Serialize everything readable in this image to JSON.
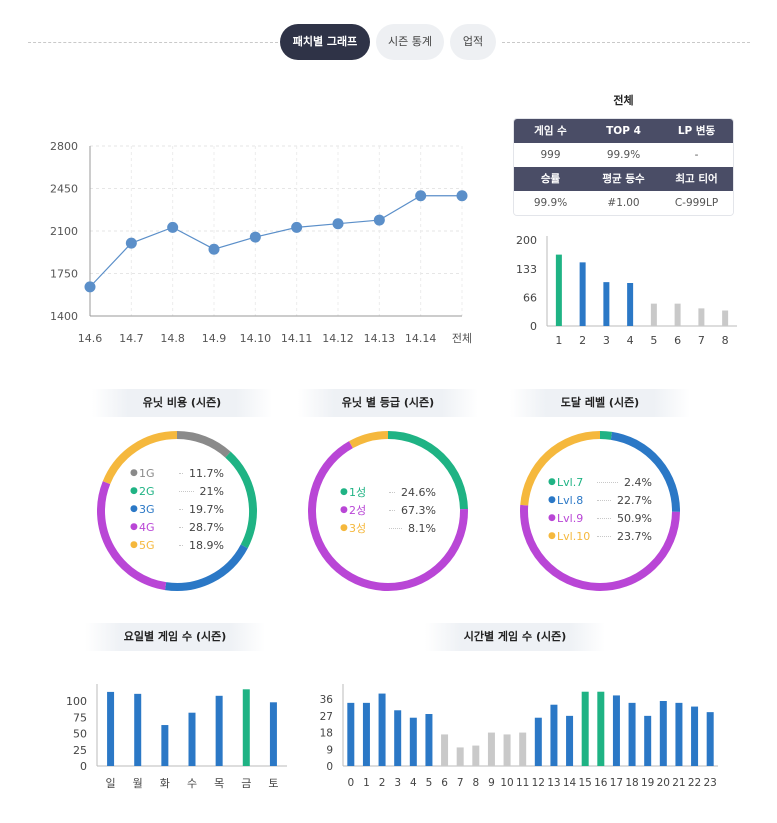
{
  "tabs": [
    {
      "label": "패치별 그래프",
      "active": true
    },
    {
      "label": "시즌 통계",
      "active": false
    },
    {
      "label": "업적",
      "active": false
    }
  ],
  "summary": {
    "title": "전체",
    "head1": [
      "게임 수",
      "TOP 4",
      "LP 변동"
    ],
    "row1": [
      "999",
      "99.9%",
      "-"
    ],
    "head2": [
      "승률",
      "평균 등수",
      "최고 티어"
    ],
    "row2": [
      "99.9%",
      "#1.00",
      "C-999LP"
    ]
  },
  "colors": {
    "blue": "#2b78c6",
    "green": "#1fb384",
    "gray": "#c9c9c9",
    "line": "#5b8fc9",
    "purple": "#b946d6",
    "yellow": "#f5b83d",
    "darkgray": "#8a8a8a",
    "navy": "#2f3347"
  },
  "titles": {
    "unit_cost": "유닛 비용 (시즌)",
    "unit_star": "유닛 별 등급 (시즌)",
    "level": "도달 레벨 (시즌)",
    "weekday": "요일별 게임 수 (시즌)",
    "hourly": "시간별 게임 수 (시즌)"
  },
  "chart_data": [
    {
      "id": "lp_line",
      "type": "line",
      "categories": [
        "14.6",
        "14.7",
        "14.8",
        "14.9",
        "14.10",
        "14.11",
        "14.12",
        "14.13",
        "14.14",
        "전체"
      ],
      "values": [
        1640,
        2000,
        2130,
        1950,
        2050,
        2130,
        2160,
        2190,
        2390,
        2390
      ],
      "ylim": [
        1400,
        2800
      ],
      "yticks": [
        1400,
        1750,
        2100,
        2450,
        2800
      ],
      "grid": true
    },
    {
      "id": "placement_bar",
      "type": "bar",
      "categories": [
        "1",
        "2",
        "3",
        "4",
        "5",
        "6",
        "7",
        "8"
      ],
      "values": [
        166,
        148,
        102,
        100,
        52,
        52,
        41,
        36
      ],
      "highlight": [
        0
      ],
      "color_group": [
        "green",
        "blue",
        "blue",
        "blue",
        "gray",
        "gray",
        "gray",
        "gray"
      ],
      "ylim": [
        0,
        200
      ],
      "yticks": [
        0,
        66,
        133,
        200
      ]
    },
    {
      "id": "unit_cost_donut",
      "type": "pie",
      "labels": [
        "1G",
        "2G",
        "3G",
        "4G",
        "5G"
      ],
      "values": [
        11.7,
        21,
        19.7,
        28.7,
        18.9
      ],
      "value_labels": [
        "11.7%",
        "21%",
        "19.7%",
        "28.7%",
        "18.9%"
      ],
      "colors": [
        "#8a8a8a",
        "#1fb384",
        "#2b78c6",
        "#b946d6",
        "#f5b83d"
      ]
    },
    {
      "id": "unit_star_donut",
      "type": "pie",
      "labels": [
        "1성",
        "2성",
        "3성"
      ],
      "values": [
        24.6,
        67.3,
        8.1
      ],
      "value_labels": [
        "24.6%",
        "67.3%",
        "8.1%"
      ],
      "colors": [
        "#1fb384",
        "#b946d6",
        "#f5b83d"
      ]
    },
    {
      "id": "level_donut",
      "type": "pie",
      "labels": [
        "Lvl.7",
        "Lvl.8",
        "Lvl.9",
        "Lvl.10"
      ],
      "values": [
        2.4,
        22.7,
        50.9,
        23.7
      ],
      "value_labels": [
        "2.4%",
        "22.7%",
        "50.9%",
        "23.7%"
      ],
      "colors": [
        "#1fb384",
        "#2b78c6",
        "#b946d6",
        "#f5b83d"
      ]
    },
    {
      "id": "weekday_bar",
      "type": "bar",
      "categories": [
        "일",
        "월",
        "화",
        "수",
        "목",
        "금",
        "토"
      ],
      "values": [
        114,
        111,
        63,
        82,
        108,
        118,
        98
      ],
      "color_group": [
        "blue",
        "blue",
        "blue",
        "blue",
        "blue",
        "green",
        "blue"
      ],
      "ylim": [
        0,
        120
      ],
      "yticks": [
        0,
        25,
        50,
        75,
        100
      ]
    },
    {
      "id": "hourly_bar",
      "type": "bar",
      "categories": [
        "0",
        "1",
        "2",
        "3",
        "4",
        "5",
        "6",
        "7",
        "8",
        "9",
        "10",
        "11",
        "12",
        "13",
        "14",
        "15",
        "16",
        "17",
        "18",
        "19",
        "20",
        "21",
        "22",
        "23"
      ],
      "values": [
        34,
        34,
        39,
        30,
        26,
        28,
        17,
        10,
        11,
        18,
        17,
        18,
        26,
        33,
        27,
        40,
        40,
        38,
        34,
        27,
        35,
        34,
        32,
        29
      ],
      "color_group": [
        "blue",
        "blue",
        "blue",
        "blue",
        "blue",
        "blue",
        "gray",
        "gray",
        "gray",
        "gray",
        "gray",
        "gray",
        "blue",
        "blue",
        "blue",
        "green",
        "green",
        "blue",
        "blue",
        "blue",
        "blue",
        "blue",
        "blue",
        "blue"
      ],
      "ylim": [
        0,
        42
      ],
      "yticks": [
        0,
        9,
        18,
        27,
        36
      ]
    }
  ]
}
